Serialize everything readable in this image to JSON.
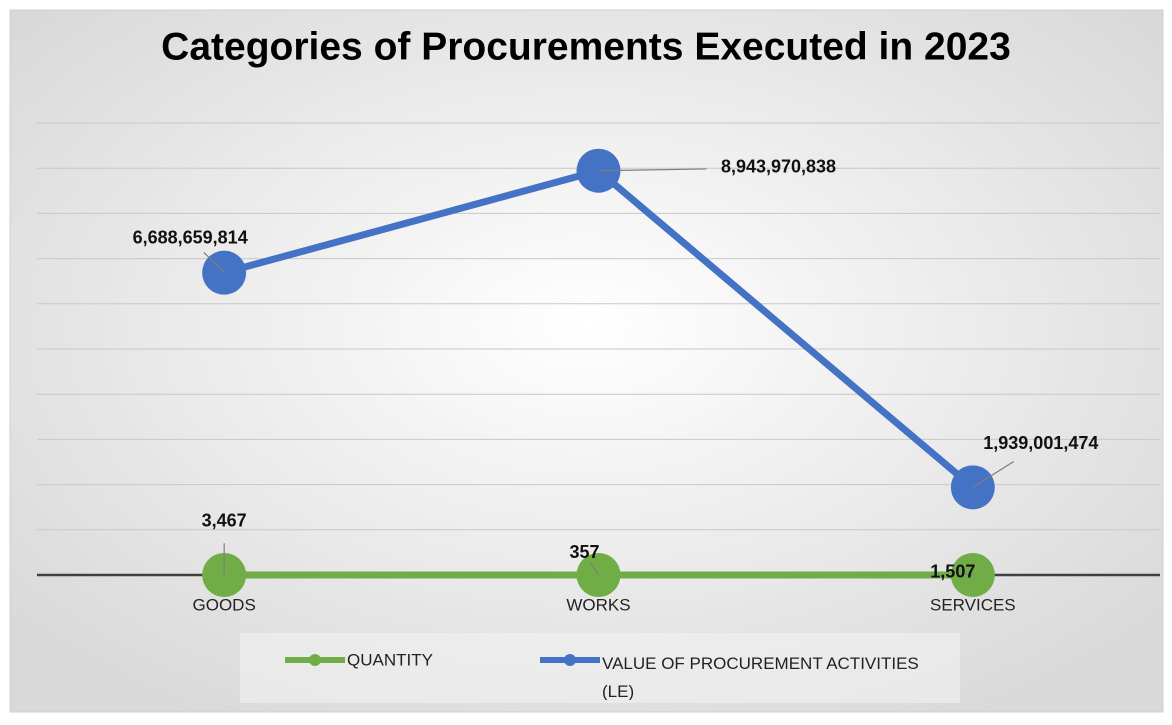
{
  "chart_data": {
    "type": "line",
    "title": "Categories of Procurements Executed in 2023",
    "categories": [
      "GOODS",
      "WORKS",
      "SERVICES"
    ],
    "series": [
      {
        "name": "QUANTITY",
        "color": "#70ad47",
        "values": [
          3467,
          357,
          1507
        ],
        "value_labels": [
          "3,467",
          "357",
          "1,507"
        ]
      },
      {
        "name": "VALUE OF PROCUREMENT ACTIVITIES (LE)",
        "color": "#4472c4",
        "values": [
          6688659814,
          8943970838,
          1939001474
        ],
        "value_labels": [
          "6,688,659,814",
          "8,943,970,838",
          "1,939,001,474"
        ]
      }
    ],
    "ylim": [
      0,
      10000000000
    ],
    "yticks": [
      0,
      1000000000,
      2000000000,
      3000000000,
      4000000000,
      5000000000,
      6000000000,
      7000000000,
      8000000000,
      9000000000,
      10000000000
    ],
    "grid": true,
    "legend": "bottom"
  }
}
